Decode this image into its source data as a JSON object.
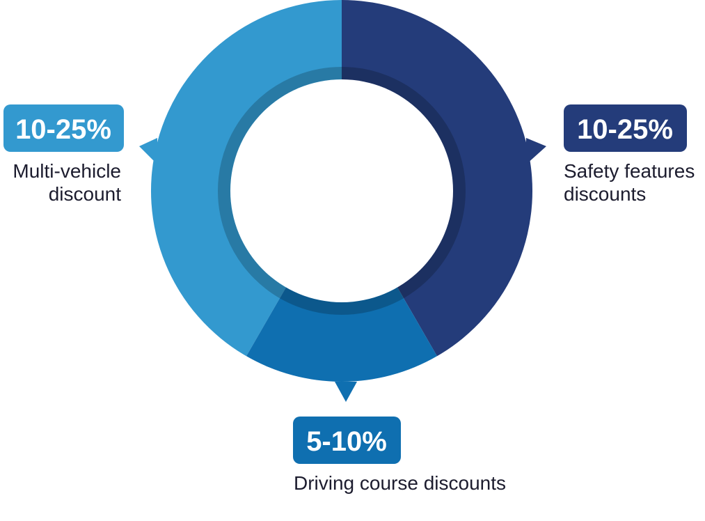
{
  "segments": [
    {
      "range": "10-25%",
      "lines": [
        "Multi-vehicle",
        "discount"
      ]
    },
    {
      "range": "10-25%",
      "lines": [
        "Safety features",
        "discounts"
      ]
    },
    {
      "range": "5-10%",
      "lines": [
        "Driving course discounts"
      ]
    }
  ]
}
